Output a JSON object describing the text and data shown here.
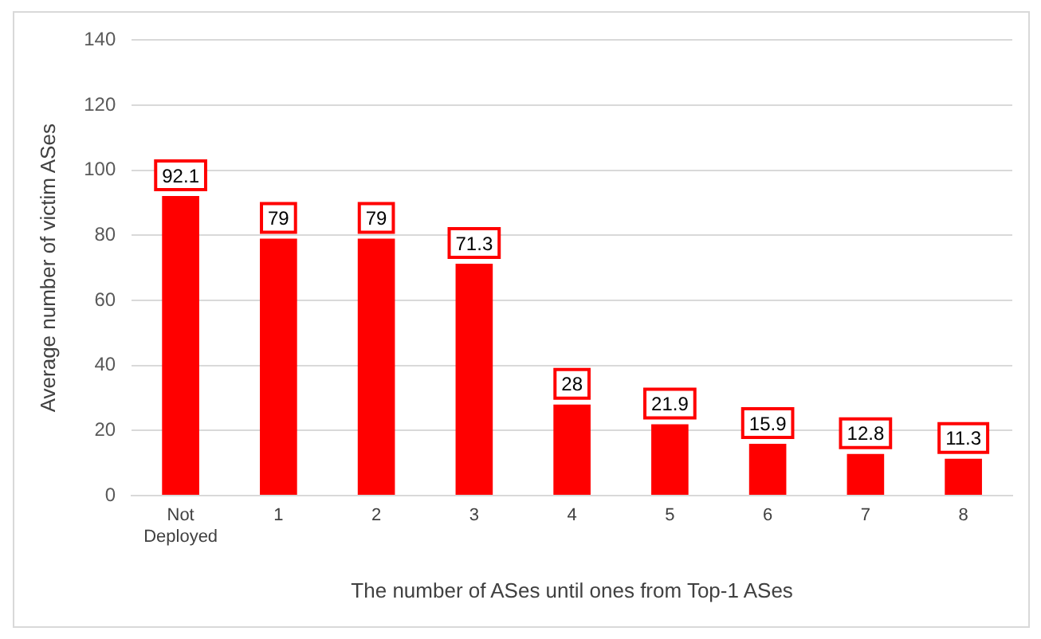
{
  "chart_data": {
    "type": "bar",
    "xlabel": "The number of ASes until ones from Top-1 ASes",
    "ylabel": "Average number of victim ASes",
    "categories": [
      "Not Deployed",
      "1",
      "2",
      "3",
      "4",
      "5",
      "6",
      "7",
      "8"
    ],
    "values": [
      92.1,
      79,
      79,
      71.3,
      28,
      21.9,
      15.9,
      12.8,
      11.3
    ],
    "color": "#ff0000",
    "ylim": [
      0,
      140
    ],
    "yticks": [
      0,
      20,
      40,
      60,
      80,
      100,
      120,
      140
    ],
    "grid": "y",
    "legend": false,
    "data_labels": true
  }
}
